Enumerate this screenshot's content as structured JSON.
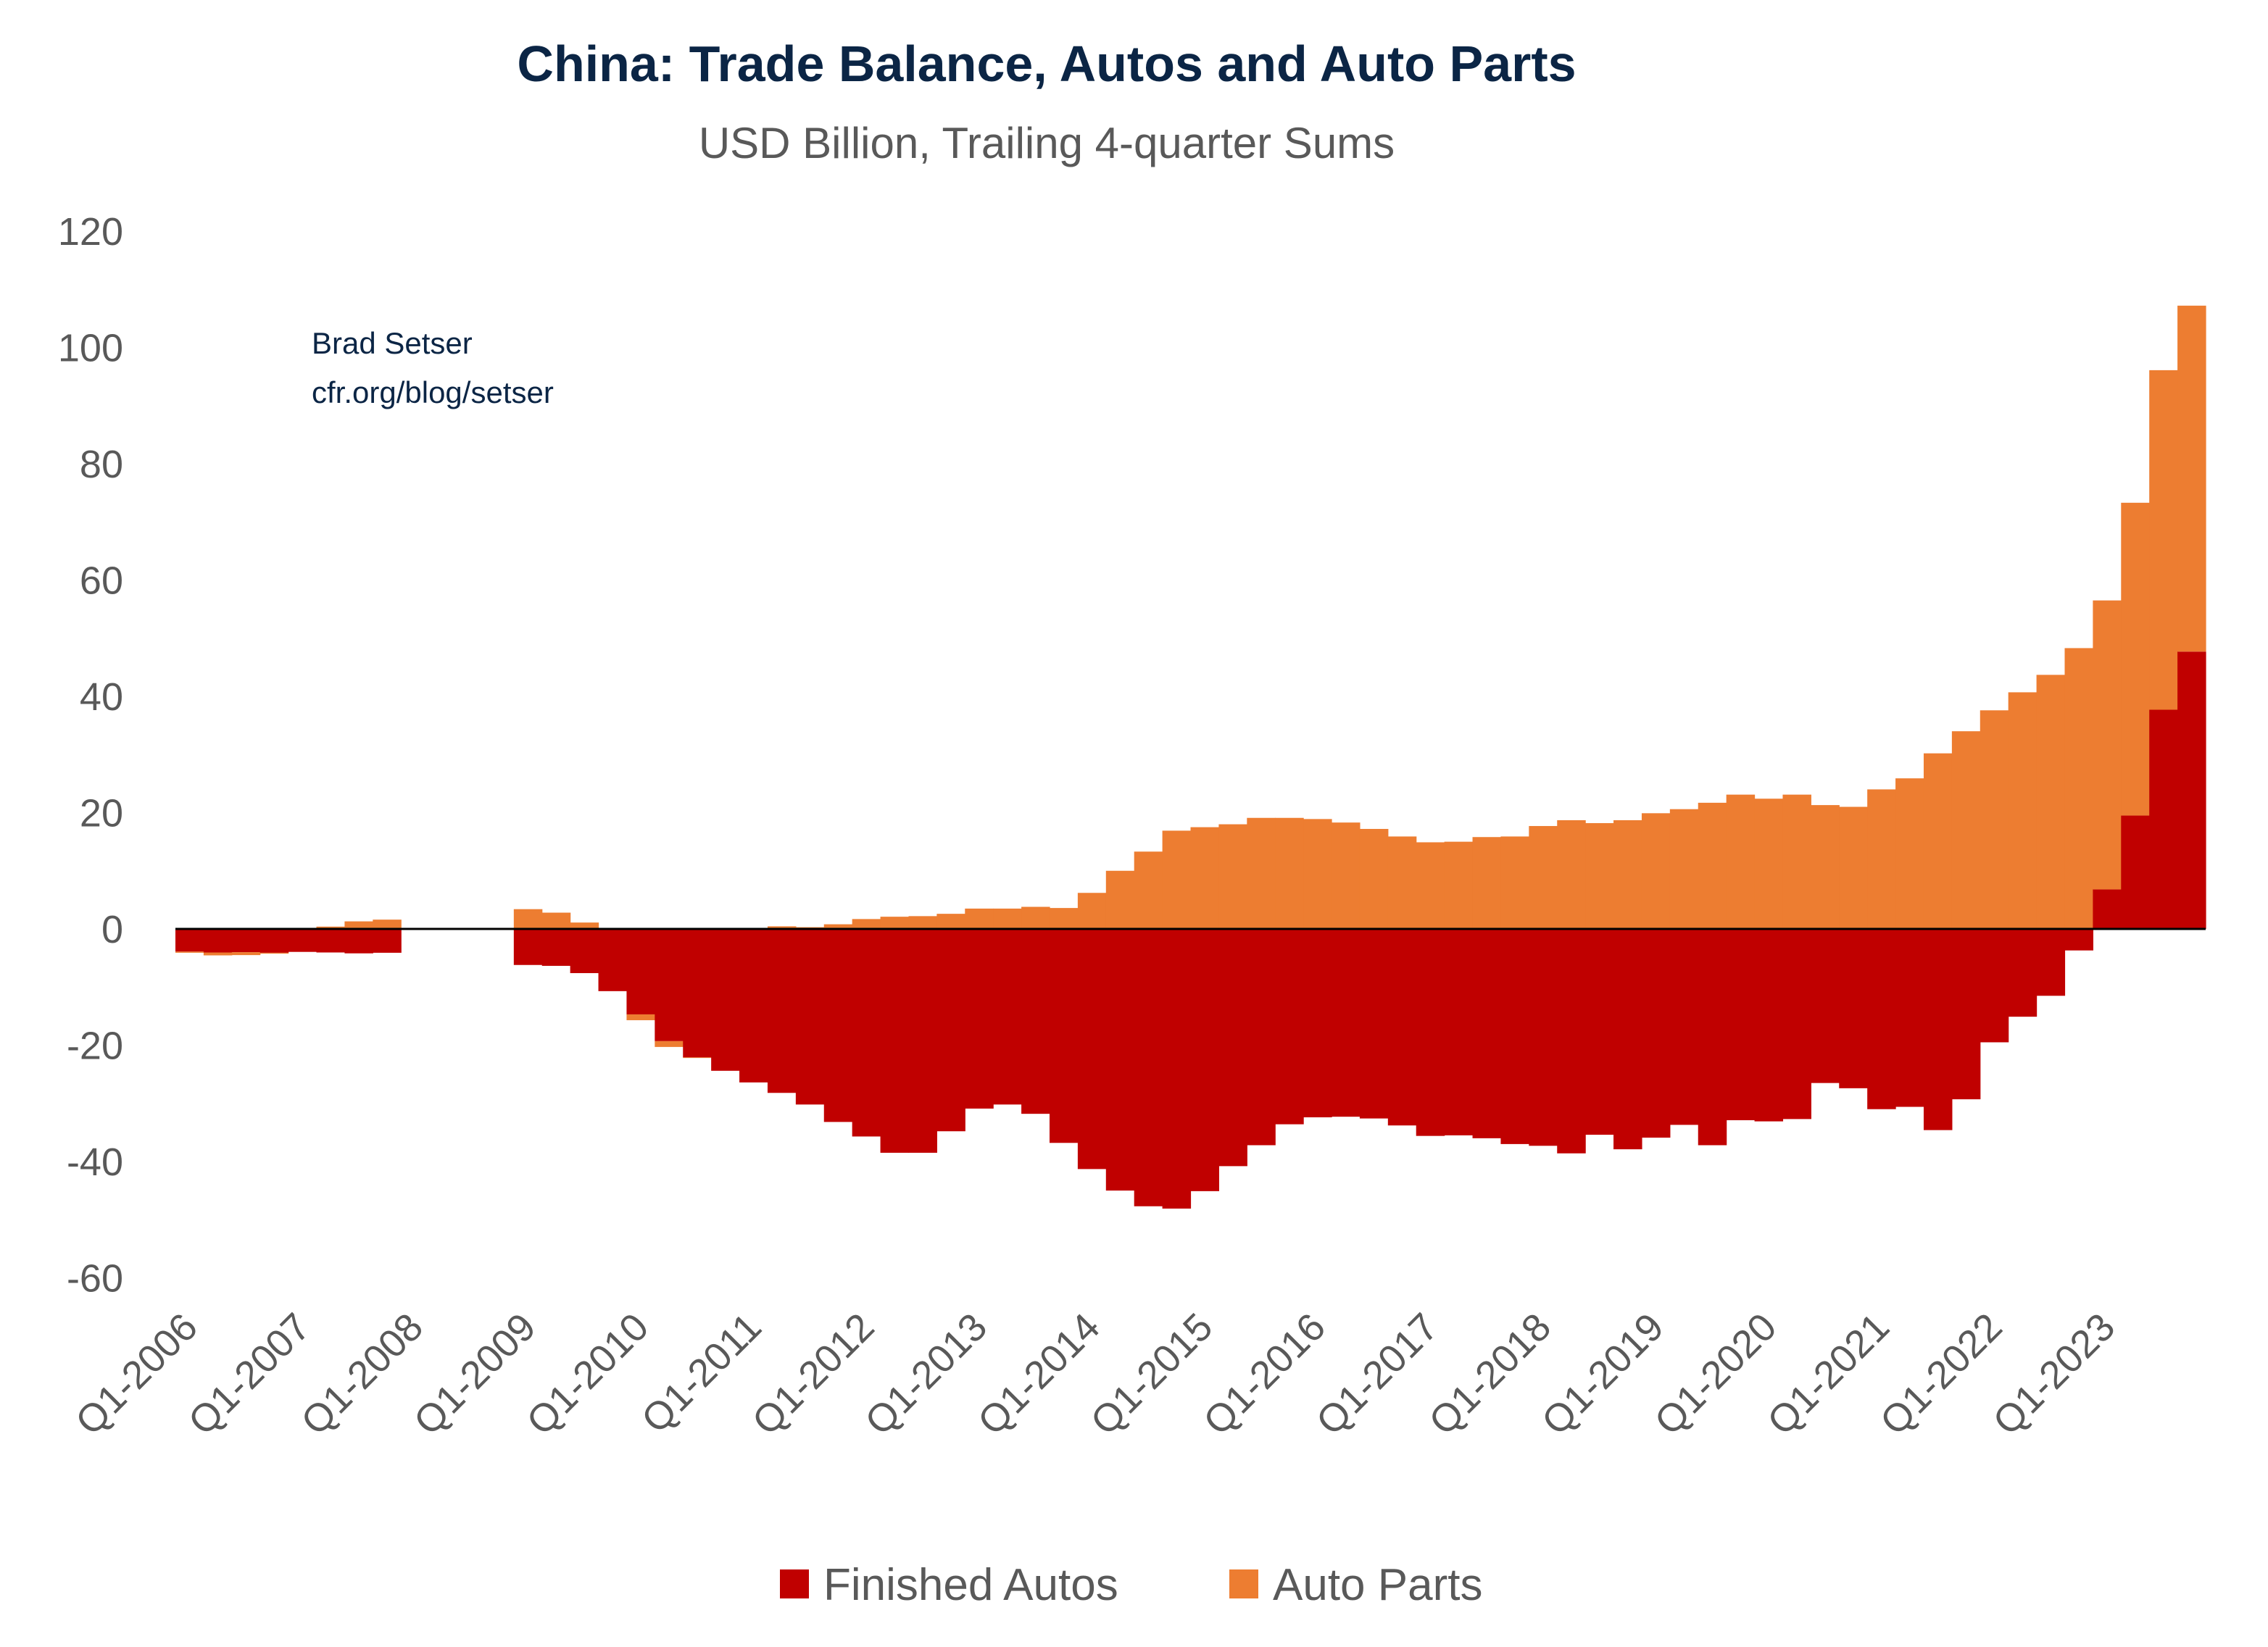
{
  "chart_data": {
    "type": "bar",
    "stacked": true,
    "title": "China: Trade Balance, Autos and Auto Parts",
    "subtitle": "USD Billion, Trailing 4-quarter Sums",
    "annotation": [
      "Brad Setser",
      "cfr.org/blog/setser"
    ],
    "xlabel": "",
    "ylabel": "",
    "ylim": [
      -70,
      125
    ],
    "yticks": [
      -60,
      -40,
      -20,
      0,
      20,
      40,
      60,
      80,
      100,
      120
    ],
    "grid": false,
    "legend_position": "bottom",
    "xtick_labels": [
      "Q1-2006",
      "Q1-2007",
      "Q1-2008",
      "Q1-2009",
      "Q1-2010",
      "Q1-2011",
      "Q1-2012",
      "Q1-2013",
      "Q1-2014",
      "Q1-2015",
      "Q1-2016",
      "Q1-2017",
      "Q1-2018",
      "Q1-2019",
      "Q1-2020",
      "Q1-2021",
      "Q1-2022",
      "Q1-2023"
    ],
    "first_period": "Q1-2006",
    "last_period": "Q4-2023",
    "series": [
      {
        "name": "Finished Autos",
        "color": "#c00000",
        "values": [
          -3.9,
          -4.05,
          -4.0,
          -4.1,
          -3.95,
          -4.05,
          -4.2,
          -4.1,
          null,
          null,
          null,
          null,
          -6.2,
          -6.35,
          -7.6,
          -10.7,
          -14.7,
          -19.3,
          -22.1,
          -24.4,
          -26.4,
          -28.2,
          -30.2,
          -33.2,
          -35.7,
          -38.5,
          -38.5,
          -34.8,
          -30.9,
          -30.2,
          -31.8,
          -36.8,
          -41.3,
          -45.0,
          -47.7,
          -48.1,
          -45.1,
          -40.8,
          -37.2,
          -33.6,
          -32.4,
          -32.3,
          -32.6,
          -33.8,
          -35.6,
          -35.5,
          -36.0,
          -37.0,
          -37.3,
          -38.6,
          -35.4,
          -37.9,
          -35.9,
          -33.7,
          -37.2,
          -32.9,
          -33.1,
          -32.7,
          -26.5,
          -27.4,
          -31.0,
          -30.6,
          -34.6,
          -29.3,
          -19.5,
          -15.1,
          -11.5,
          -3.7,
          6.8,
          19.5,
          37.7,
          47.7
        ]
      },
      {
        "name": "Auto Parts",
        "color": "#ed7d31",
        "values": [
          -0.2,
          -0.5,
          -0.5,
          -0.15,
          0.0,
          0.4,
          1.3,
          1.6,
          null,
          null,
          null,
          null,
          3.4,
          2.8,
          1.1,
          0.0,
          -1.0,
          -1.0,
          -0.1,
          0.0,
          0.0,
          0.45,
          0.3,
          0.8,
          1.7,
          2.1,
          2.2,
          2.6,
          3.5,
          3.5,
          3.8,
          3.6,
          6.2,
          10.0,
          13.3,
          16.9,
          17.5,
          18.0,
          19.1,
          19.1,
          18.9,
          18.3,
          17.2,
          15.9,
          14.9,
          15.0,
          15.8,
          15.9,
          17.7,
          18.7,
          18.2,
          18.7,
          19.9,
          20.6,
          21.7,
          23.1,
          22.4,
          23.1,
          21.3,
          21.0,
          24.0,
          25.9,
          30.2,
          34.0,
          37.6,
          40.7,
          43.7,
          48.3,
          49.7,
          53.8,
          58.4,
          59.5
        ]
      }
    ]
  }
}
